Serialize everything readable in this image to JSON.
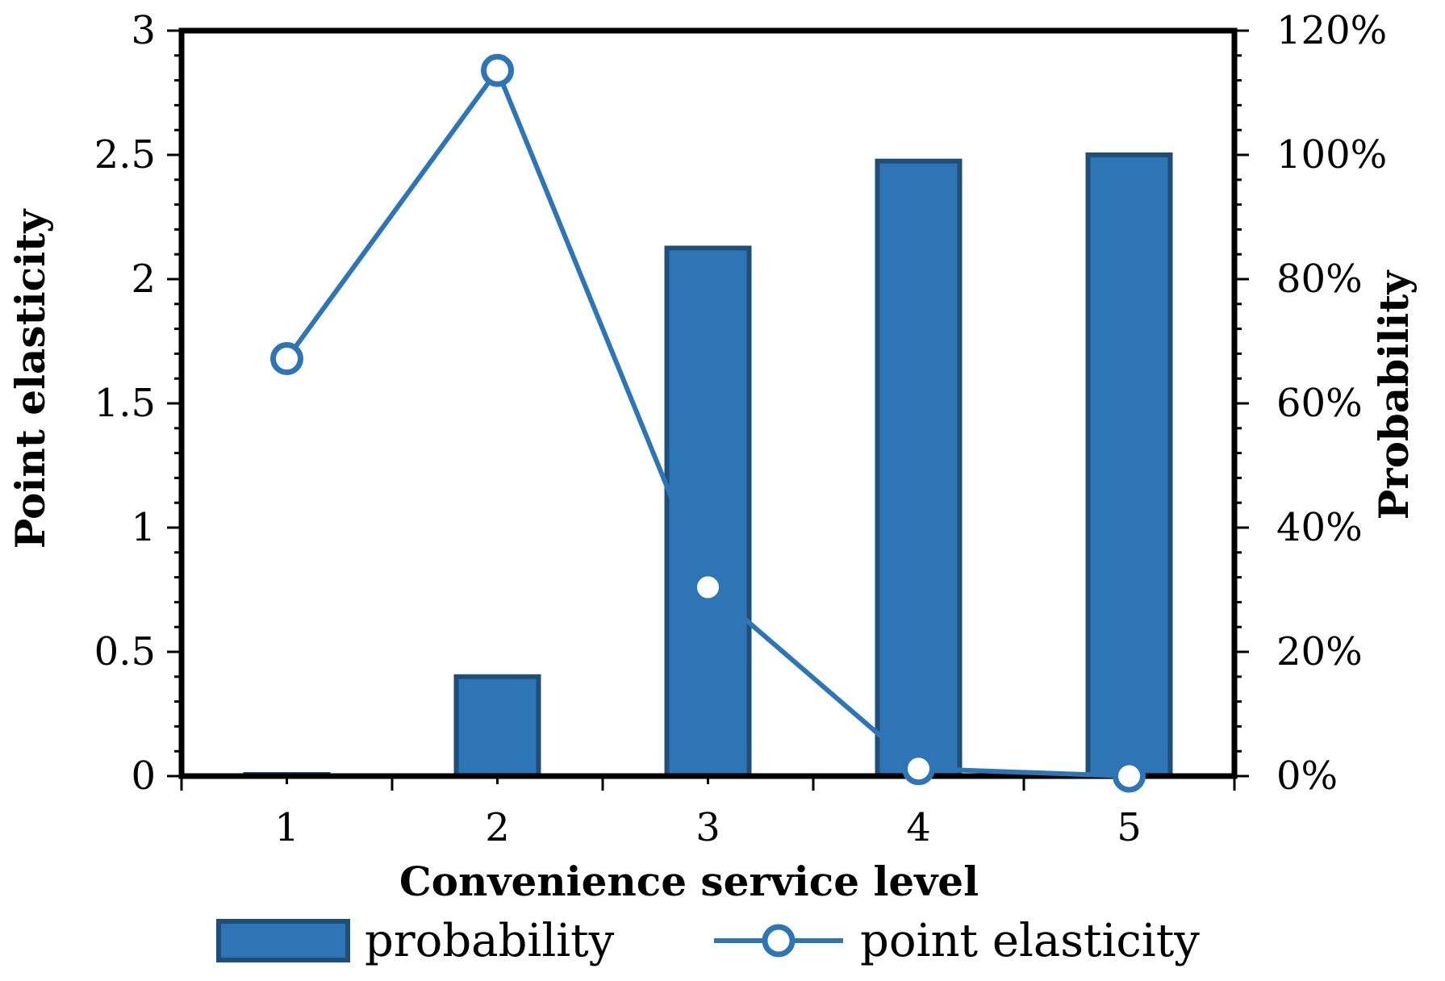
{
  "chart_data": {
    "type": "bar",
    "categories": [
      "1",
      "2",
      "3",
      "4",
      "5"
    ],
    "xlabel": "Convenience service level",
    "ylabel": "Point elasticity",
    "y2label": "Probability",
    "ylim": [
      0,
      3
    ],
    "y2lim": [
      0,
      1.2
    ],
    "yticks": [
      "0",
      "0.5",
      "1",
      "1.5",
      "2",
      "2.5",
      "3"
    ],
    "y2ticks": [
      "0%",
      "20%",
      "40%",
      "60%",
      "80%",
      "100%",
      "120%"
    ],
    "grid": false,
    "legend_position": "bottom",
    "series": [
      {
        "name": "probability",
        "type": "bar",
        "axis": "right",
        "values": [
          0.002,
          0.16,
          0.85,
          0.99,
          1.0
        ]
      },
      {
        "name": "point elasticity",
        "type": "line",
        "axis": "left",
        "values": [
          1.68,
          2.84,
          0.76,
          0.03,
          0.0
        ]
      }
    ],
    "colors": {
      "bar_fill": "#2E75B6",
      "bar_edge": "#1F4E79",
      "line": "#2E75B6",
      "marker_fill": "#FFFFFF"
    }
  }
}
